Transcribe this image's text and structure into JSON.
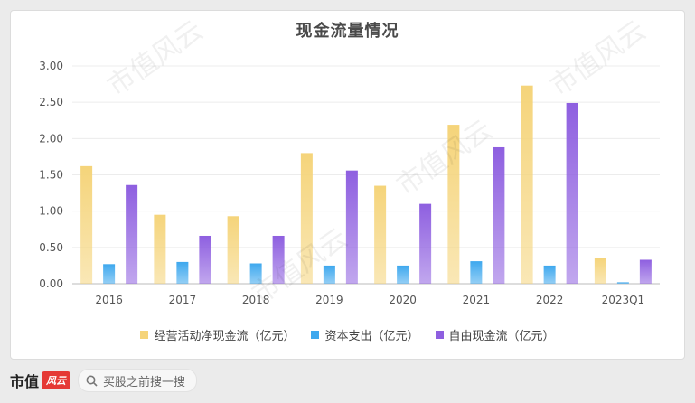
{
  "chart_data": {
    "type": "bar",
    "title": "现金流量情况",
    "categories": [
      "2016",
      "2017",
      "2018",
      "2019",
      "2020",
      "2021",
      "2022",
      "2023Q1"
    ],
    "series": [
      {
        "name": "经营活动净现金流（亿元）",
        "color": "#f5d47a",
        "values": [
          1.62,
          0.95,
          0.93,
          1.8,
          1.35,
          2.19,
          2.73,
          0.35
        ]
      },
      {
        "name": "资本支出（亿元）",
        "color": "#3ea8ee",
        "values": [
          0.27,
          0.3,
          0.28,
          0.25,
          0.25,
          0.31,
          0.25,
          0.02
        ]
      },
      {
        "name": "自由现金流（亿元）",
        "color": "#8e5fe0",
        "values": [
          1.36,
          0.66,
          0.66,
          1.56,
          1.1,
          1.88,
          2.49,
          0.33
        ]
      }
    ],
    "ylim": [
      0,
      3
    ],
    "yticks": [
      "0.00",
      "0.50",
      "1.00",
      "1.50",
      "2.00",
      "2.50",
      "3.00"
    ],
    "grid": true,
    "legend_position": "bottom"
  },
  "footer": {
    "brand_text": "市值",
    "brand_badge": "风云",
    "search_placeholder": "买股之前搜一搜"
  },
  "watermark": "市值风云"
}
